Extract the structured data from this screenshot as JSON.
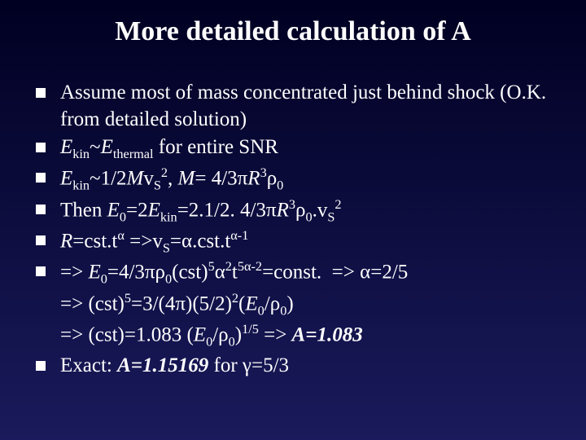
{
  "slide": {
    "title": "More detailed calculation of A",
    "colors": {
      "background_top": "#000022",
      "background_bottom": "#1a1a5c",
      "text": "#ffffff",
      "bullet": "#ffffff"
    },
    "typography": {
      "title_fontsize": 34,
      "body_fontsize": 25,
      "font_family": "Times New Roman"
    },
    "bullets": [
      {
        "html": "Assume most of mass concentrated just behind shock (O.K. from detailed solution)"
      },
      {
        "html": "<span class='ital'>E</span><sub>kin</sub>~<span class='ital'>E</span><sub>thermal</sub> for entire SNR"
      },
      {
        "html": "<span class='ital'>E</span><sub>kin</sub>~1/2<span class='ital'>M</span>v<sub>S</sub><sup>2</sup>, <span class='ital'>M</span>= 4/3&pi;<span class='ital'>R</span><sup>3</sup>&rho;<sub>0</sub>"
      },
      {
        "html": "Then <span class='ital'>E</span><sub>0</sub>=2<span class='ital'>E</span><sub>kin</sub>=2.1/2. 4/3&pi;<span class='ital'>R</span><sup>3</sup>&rho;<sub>0</sub>.v<sub>S</sub><sup>2</sup>"
      },
      {
        "html": "<span class='ital'>R</span>=cst.t<sup>&alpha;</sup> =&gt;v<sub>S</sub>=&alpha;.cst.t<sup>&alpha;-1</sup>"
      },
      {
        "html": "=&gt; <span class='ital'>E</span><sub>0</sub>=4/3&pi;&rho;<sub>0</sub>(cst)<sup>5</sup>&alpha;<sup>2</sup>t<sup>5&alpha;-2</sup>=const.&nbsp;&nbsp;=&gt; &alpha;=2/5",
        "sublines": [
          "=&gt; (cst)<sup>5</sup>=3/(4&pi;)(5/2)<sup>2</sup>(<span class='ital'>E</span><sub>0</sub>/&rho;<sub>0</sub>)",
          "=&gt; (cst)=1.083 (<span class='ital'>E</span><sub>0</sub>/&rho;<sub>0</sub>)<sup>1/5</sup> =&gt; <span class='bolditalic'>A=1.083</span>"
        ]
      },
      {
        "html": "Exact: <span class='bolditalic'>A=1.15169</span> for &gamma;=5/3"
      }
    ]
  }
}
